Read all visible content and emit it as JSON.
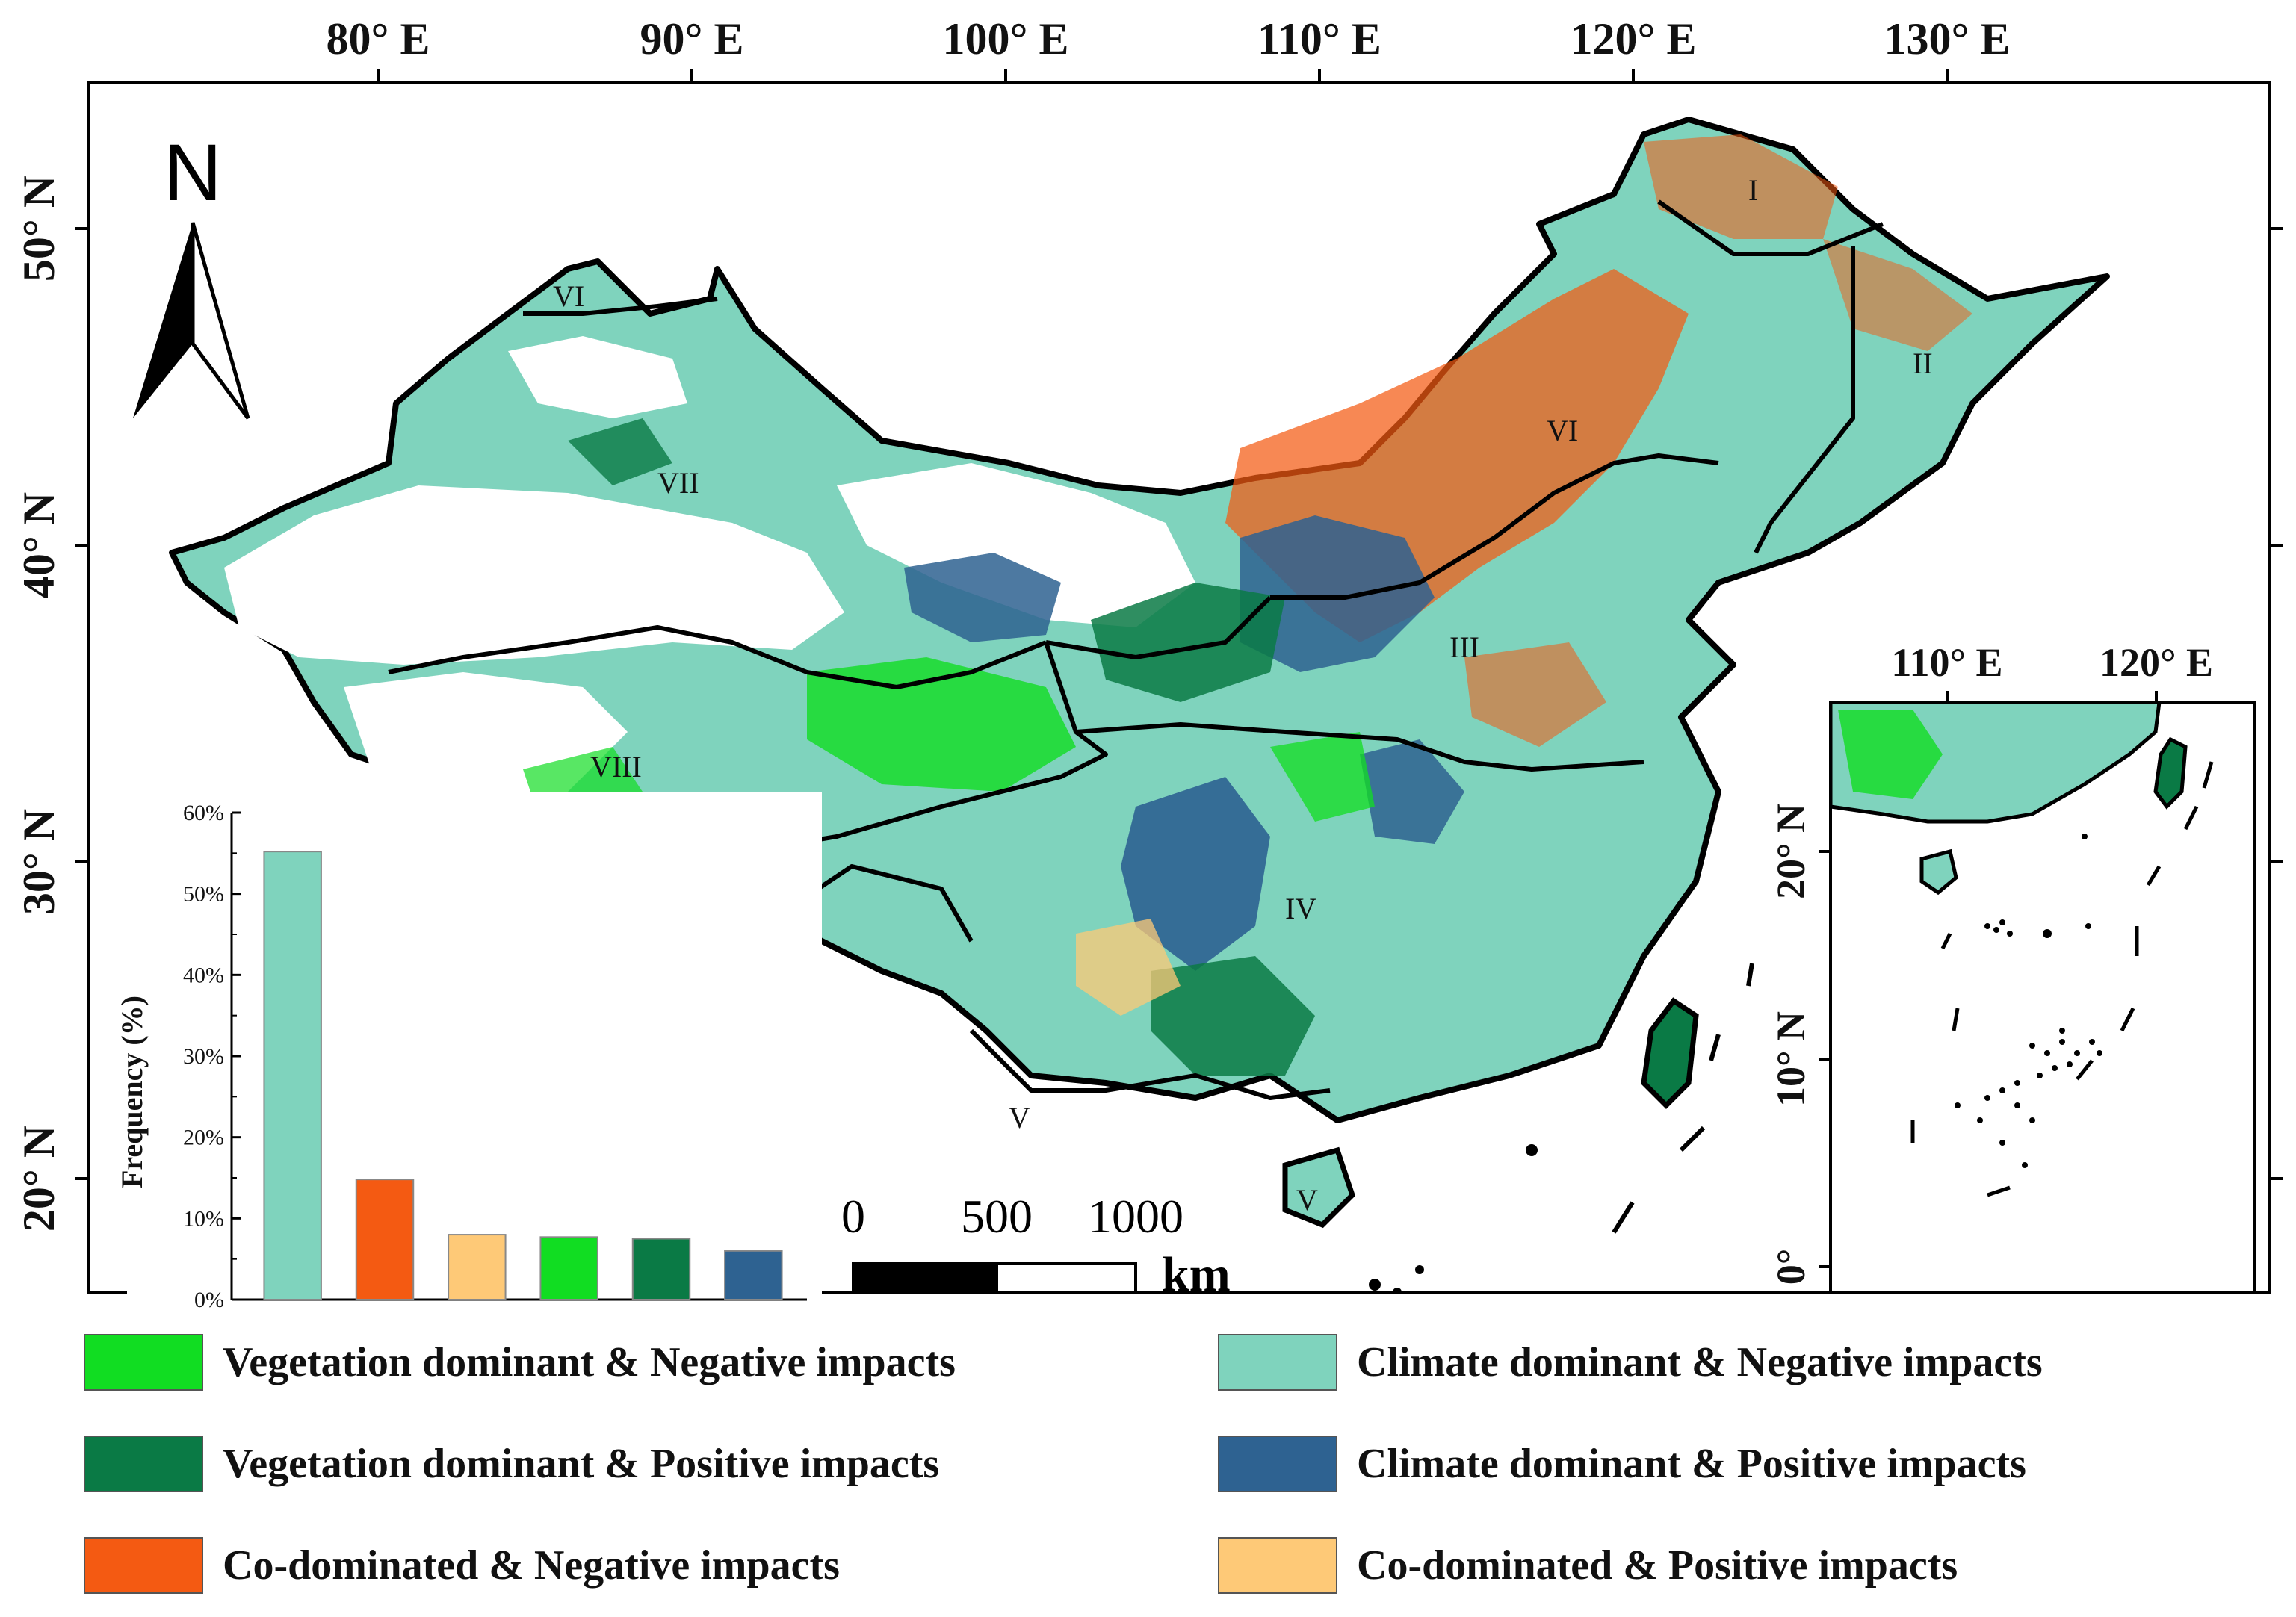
{
  "map": {
    "top_ticks": [
      "80° E",
      "90° E",
      "100° E",
      "110° E",
      "120° E",
      "130° E"
    ],
    "left_ticks": [
      "50° N",
      "40° N",
      "30° N",
      "20° N"
    ],
    "north_label": "N",
    "region_labels": [
      "I",
      "II",
      "III",
      "IV",
      "V",
      "VI",
      "VII",
      "VIII"
    ],
    "scale": {
      "ticks": [
        "0",
        "500",
        "1000"
      ],
      "unit": "km"
    }
  },
  "inset": {
    "top_ticks": [
      "110° E",
      "120° E"
    ],
    "left_ticks": [
      "20° N",
      "10° N",
      "0°"
    ]
  },
  "chart_data": {
    "type": "bar",
    "ylabel": "Frequency (%)",
    "ylim": [
      0,
      60
    ],
    "yticks": [
      "0%",
      "10%",
      "20%",
      "30%",
      "40%",
      "50%",
      "60%"
    ],
    "categories": [
      "Climate dominant & Negative impacts",
      "Co-dominated & Negative impacts",
      "Co-dominated & Positive impacts",
      "Vegetation dominant & Negative impacts",
      "Vegetation dominant & Positive impacts",
      "Climate dominant & Positive impacts"
    ],
    "values": [
      55.2,
      14.8,
      8.0,
      7.7,
      7.5,
      6.0
    ],
    "colors": [
      "#7fd3bd",
      "#f45a12",
      "#fec977",
      "#11dd22",
      "#0a7a45",
      "#2e6291"
    ]
  },
  "legend": {
    "items": [
      {
        "label": "Vegetation dominant & Negative impacts",
        "color": "#11dd22"
      },
      {
        "label": "Climate dominant & Negative impacts",
        "color": "#7fd3bd"
      },
      {
        "label": "Vegetation dominant & Positive impacts",
        "color": "#0a7a45"
      },
      {
        "label": "Climate dominant & Positive impacts",
        "color": "#2e6291"
      },
      {
        "label": "Co-dominated & Negative impacts",
        "color": "#f45a12"
      },
      {
        "label": "Co-dominated & Positive impacts",
        "color": "#fec977"
      }
    ]
  }
}
